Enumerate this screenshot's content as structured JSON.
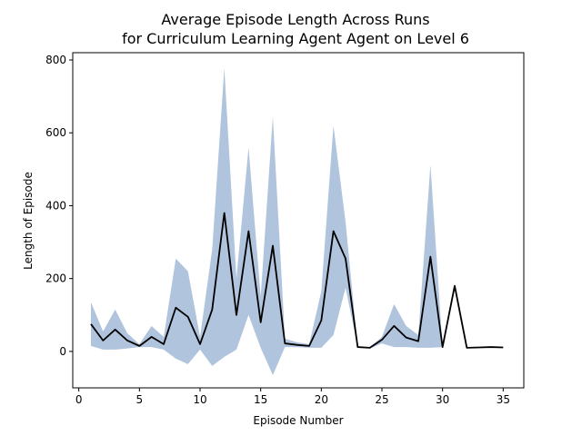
{
  "chart_data": {
    "type": "line",
    "title_line1": "Average Episode Length Across Runs",
    "title_line2": "for Curriculum Learning Agent Agent on Level 6",
    "xlabel": "Episode Number",
    "ylabel": "Length of Episode",
    "xlim": [
      -0.5,
      36.7
    ],
    "ylim": [
      -100,
      820
    ],
    "xticks": [
      0,
      5,
      10,
      15,
      20,
      25,
      30,
      35
    ],
    "yticks": [
      0,
      200,
      400,
      600,
      800
    ],
    "grid": false,
    "series": [
      {
        "x": [
          1,
          2,
          3,
          4,
          5,
          6,
          7,
          8,
          9,
          10,
          11,
          12,
          13,
          14,
          15,
          16,
          17,
          18,
          19,
          20,
          21,
          22,
          23,
          24,
          25,
          26,
          27,
          28,
          29,
          30,
          31,
          32,
          33,
          34,
          35
        ],
        "values": [
          75,
          30,
          60,
          30,
          15,
          40,
          20,
          120,
          95,
          20,
          115,
          380,
          100,
          330,
          80,
          290,
          22,
          18,
          15,
          85,
          330,
          255,
          12,
          10,
          32,
          70,
          38,
          28,
          260,
          12,
          180,
          10,
          11,
          12,
          11
        ],
        "color": "#000000"
      }
    ],
    "band": {
      "x": [
        1,
        2,
        3,
        4,
        5,
        6,
        7,
        8,
        9,
        10,
        11,
        12,
        13,
        14,
        15,
        16,
        17,
        18,
        19,
        20,
        21,
        22,
        23,
        24,
        25,
        26,
        27,
        28,
        29,
        30
      ],
      "upper": [
        135,
        55,
        115,
        50,
        20,
        70,
        40,
        255,
        220,
        40,
        280,
        778,
        200,
        560,
        150,
        645,
        35,
        25,
        20,
        165,
        620,
        355,
        12,
        12,
        40,
        130,
        70,
        45,
        512,
        12
      ],
      "lower": [
        15,
        5,
        5,
        8,
        12,
        12,
        5,
        -20,
        -35,
        5,
        -40,
        -15,
        5,
        100,
        10,
        -65,
        12,
        12,
        10,
        10,
        45,
        175,
        12,
        8,
        22,
        12,
        12,
        10,
        10,
        12
      ],
      "color": "#b0c4de"
    }
  }
}
